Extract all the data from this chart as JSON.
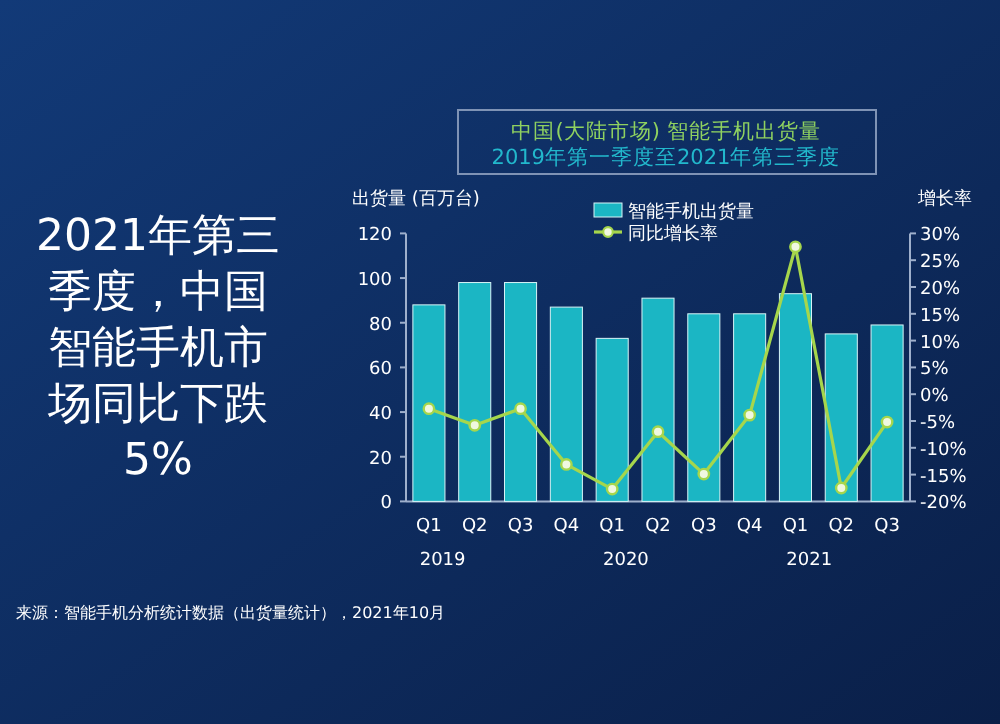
{
  "chart_data": {
    "type": "bar",
    "title": "中国(大陆市场) 智能手机出货量",
    "subtitle": "2019年第一季度至2021年第三季度",
    "ylabel": "出货量 (百万台)",
    "y2label": "增长率",
    "categories": [
      "Q1",
      "Q2",
      "Q3",
      "Q4",
      "Q1",
      "Q2",
      "Q3",
      "Q4",
      "Q1",
      "Q2",
      "Q3"
    ],
    "series": [
      {
        "name": "智能手机出货量",
        "color": "#1bb6c4",
        "values": [
          88,
          98,
          98,
          87,
          73,
          91,
          84,
          84,
          93,
          75,
          79
        ]
      },
      {
        "name": "同比增长率",
        "type": "line",
        "axis": "y2",
        "color": "#a6d64c",
        "marker": "circle",
        "values": [
          -2.7,
          -5.8,
          -2.7,
          -13.1,
          -17.7,
          -7.0,
          -14.9,
          -3.9,
          27.5,
          -17.5,
          -5.2
        ]
      }
    ],
    "ylim": [
      0,
      120
    ],
    "yticks": [
      0,
      20,
      40,
      60,
      80,
      100,
      120
    ],
    "y2lim": [
      -20,
      30
    ],
    "y2ticks": [
      {
        "value": -20,
        "label": "-20%"
      },
      {
        "value": -15,
        "label": "-15%"
      },
      {
        "value": -10,
        "label": "-10%"
      },
      {
        "value": -5,
        "label": "-5%"
      },
      {
        "value": 0,
        "label": "0%"
      },
      {
        "value": 5,
        "label": "5%"
      },
      {
        "value": 10,
        "label": "10%"
      },
      {
        "value": 15,
        "label": "15%"
      },
      {
        "value": 20,
        "label": "20%"
      },
      {
        "value": 25,
        "label": "25%"
      },
      {
        "value": 30,
        "label": "30%"
      }
    ],
    "legend": "top",
    "grid": false,
    "annotations": [
      "2021年第三季度，中国智能手机市场同比下跌5%",
      "2019",
      "2020",
      "2021",
      "来源：智能手机分析统计数据（出货量统计），2021年10月"
    ]
  }
}
